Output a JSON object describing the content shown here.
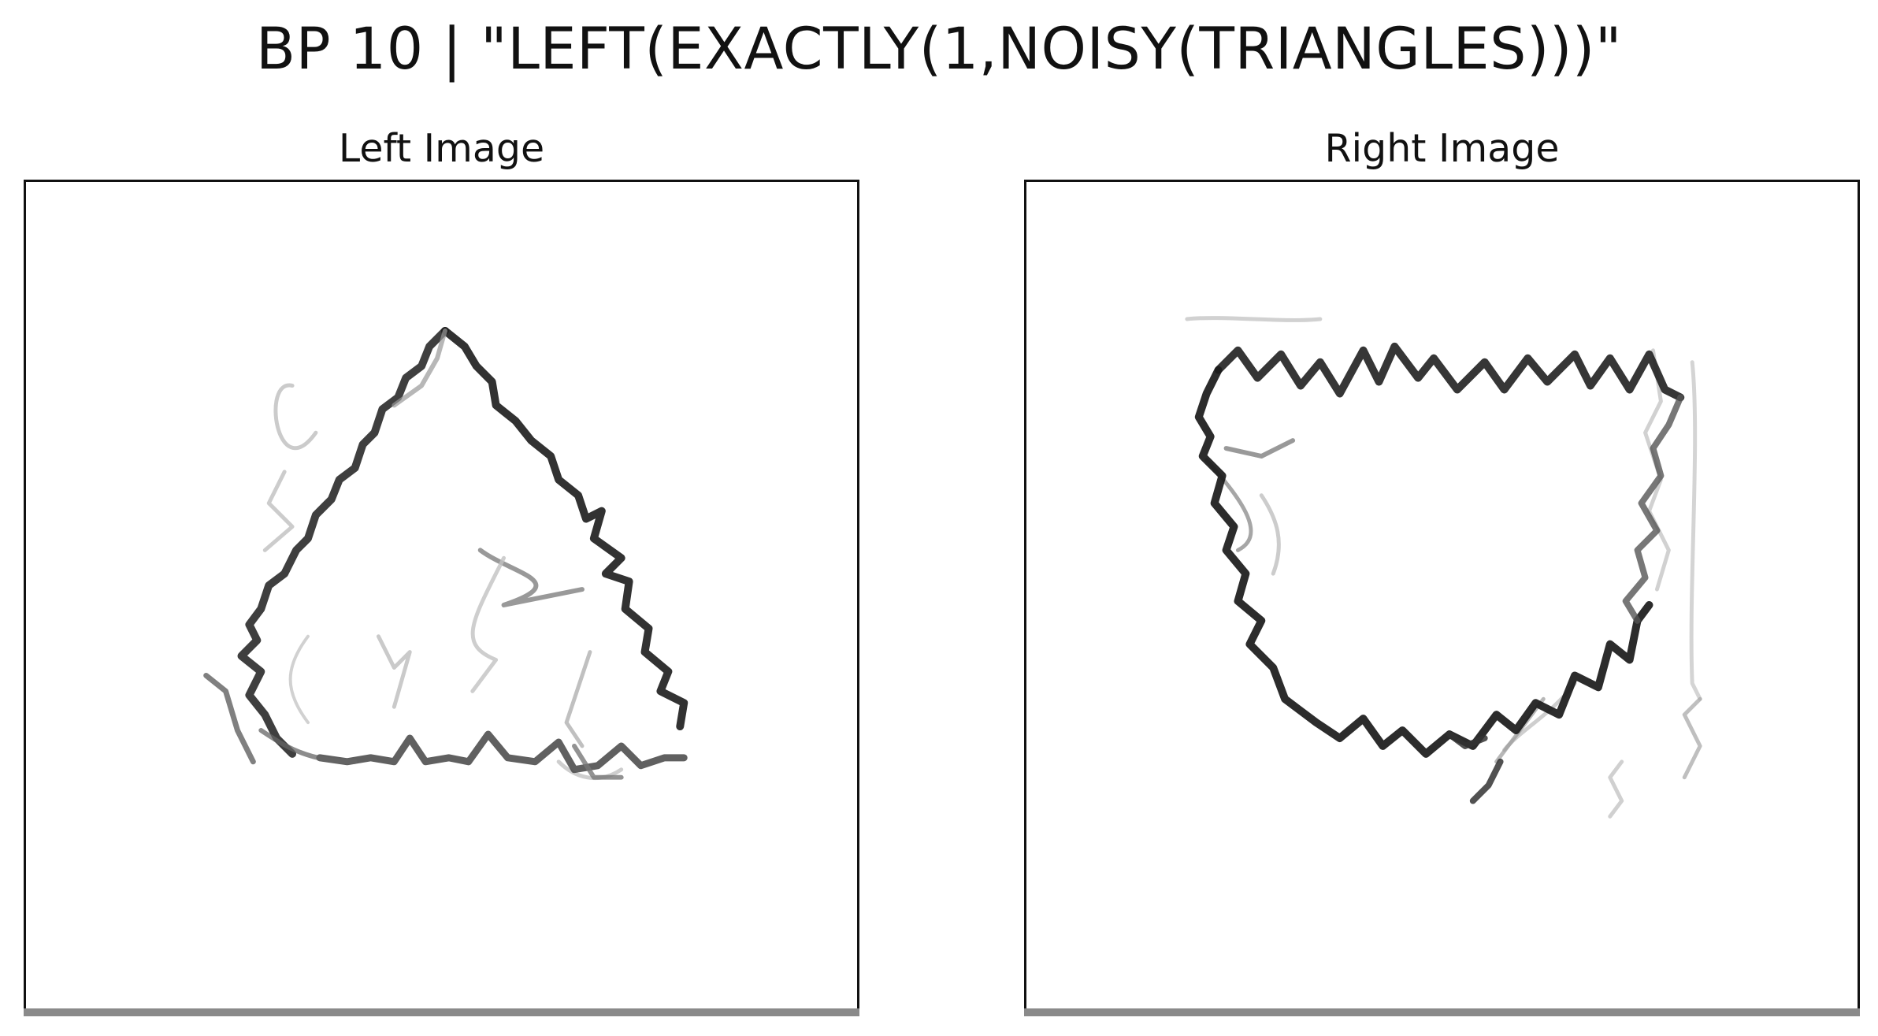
{
  "figure": {
    "title": "BP 10 | \"LEFT(EXACTLY(1,NOISY(TRIANGLES)))\""
  },
  "panels": [
    {
      "title": "Left Image",
      "image_content": "noisy-triangle-sketch"
    },
    {
      "title": "Right Image",
      "image_content": "noisy-quadrilateral-sketch"
    }
  ],
  "colors": {
    "stroke_dark": "#111111",
    "stroke_mid": "#555555",
    "stroke_light": "#b5b5b5",
    "frame": "#111111",
    "bottom_strip": "#8a8a8a"
  }
}
